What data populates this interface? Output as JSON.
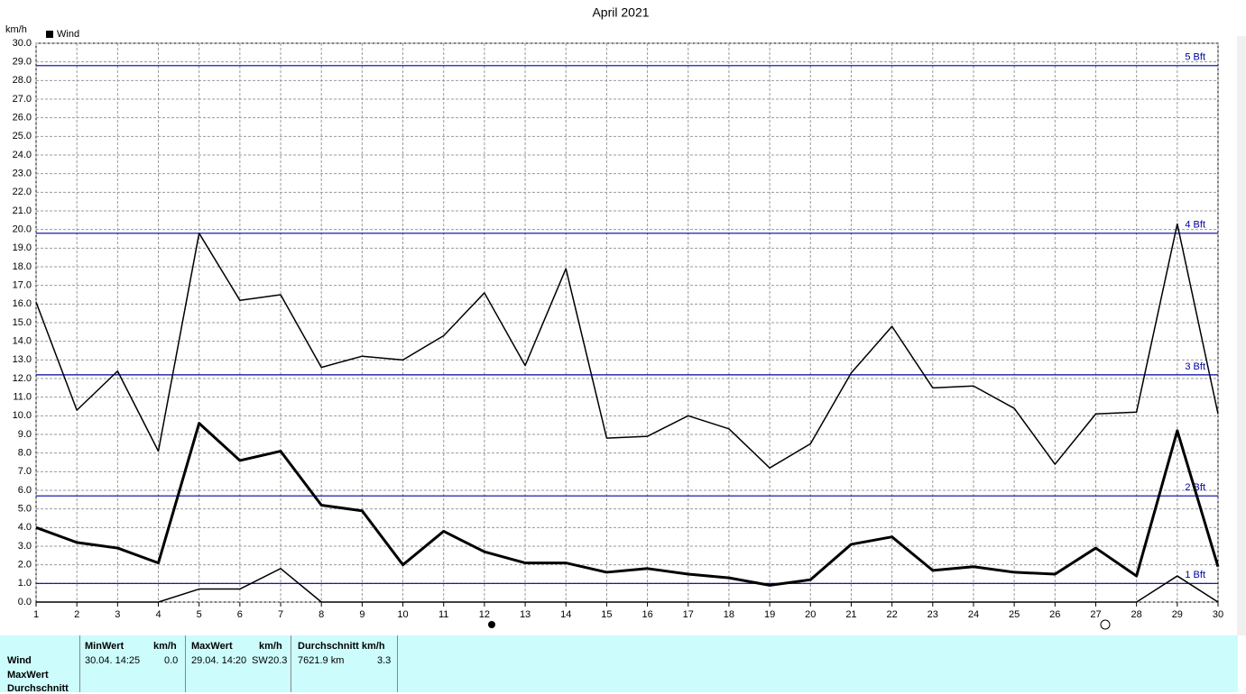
{
  "chart_data": {
    "type": "line",
    "title": "April 2021",
    "y_unit": "km/h",
    "legend_label": "Wind",
    "x": [
      1,
      2,
      3,
      4,
      5,
      6,
      7,
      8,
      9,
      10,
      11,
      12,
      13,
      14,
      15,
      16,
      17,
      18,
      19,
      20,
      21,
      22,
      23,
      24,
      25,
      26,
      27,
      28,
      29,
      30
    ],
    "xlim": [
      1,
      30
    ],
    "xticks": [
      1,
      2,
      3,
      4,
      5,
      6,
      7,
      8,
      9,
      10,
      11,
      12,
      13,
      14,
      15,
      16,
      17,
      18,
      19,
      20,
      21,
      22,
      23,
      24,
      25,
      26,
      27,
      28,
      29,
      30
    ],
    "ylim": [
      0,
      30
    ],
    "grid": true,
    "yticks": [
      {
        "value": 0,
        "label": "0.0"
      },
      {
        "value": 1,
        "label": "1.0"
      },
      {
        "value": 2,
        "label": "2.0"
      },
      {
        "value": 3,
        "label": "3.0"
      },
      {
        "value": 4,
        "label": "4.0"
      },
      {
        "value": 5,
        "label": "5.0"
      },
      {
        "value": 6,
        "label": "6.0"
      },
      {
        "value": 7,
        "label": "7.0"
      },
      {
        "value": 8,
        "label": "8.0"
      },
      {
        "value": 9,
        "label": "9.0"
      },
      {
        "value": 10,
        "label": "10.0"
      },
      {
        "value": 11,
        "label": "11.0"
      },
      {
        "value": 12,
        "label": "12.0"
      },
      {
        "value": 13,
        "label": "13.0"
      },
      {
        "value": 14,
        "label": "14.0"
      },
      {
        "value": 15,
        "label": "15.0"
      },
      {
        "value": 16,
        "label": "16.0"
      },
      {
        "value": 17,
        "label": "17.0"
      },
      {
        "value": 18,
        "label": "18.0"
      },
      {
        "value": 19,
        "label": "19.0"
      },
      {
        "value": 20,
        "label": "20.0"
      },
      {
        "value": 21,
        "label": "21.0"
      },
      {
        "value": 22,
        "label": "22.0"
      },
      {
        "value": 23,
        "label": "23.0"
      },
      {
        "value": 24,
        "label": "24.0"
      },
      {
        "value": 25,
        "label": "25.0"
      },
      {
        "value": 26,
        "label": "26.0"
      },
      {
        "value": 27,
        "label": "27.0"
      },
      {
        "value": 28,
        "label": "28.0"
      },
      {
        "value": 29,
        "label": "29.0"
      },
      {
        "value": 30,
        "label": "30.0"
      }
    ],
    "reference_lines": [
      {
        "value": 1.0,
        "label": "1 Bft"
      },
      {
        "value": 5.7,
        "label": "2 Bft"
      },
      {
        "value": 12.2,
        "label": "3 Bft"
      },
      {
        "value": 19.8,
        "label": "4 Bft"
      },
      {
        "value": 28.8,
        "label": "5 Bft"
      }
    ],
    "reference_color": "#0000a0",
    "series": [
      {
        "color": "#000000",
        "width": 1.5,
        "values": [
          16.1,
          10.3,
          12.4,
          8.1,
          19.8,
          16.2,
          16.5,
          12.6,
          13.2,
          13.0,
          14.3,
          16.6,
          12.7,
          17.9,
          8.8,
          8.9,
          10.0,
          9.3,
          7.2,
          8.5,
          12.3,
          14.8,
          11.5,
          11.6,
          10.4,
          7.4,
          10.1,
          10.2,
          20.3,
          10.1
        ]
      },
      {
        "color": "#000000",
        "width": 3,
        "values": [
          4.0,
          3.2,
          2.9,
          2.1,
          9.6,
          7.6,
          8.1,
          5.2,
          4.9,
          2.0,
          3.8,
          2.7,
          2.1,
          2.1,
          1.6,
          1.8,
          1.5,
          1.3,
          0.9,
          1.2,
          3.1,
          3.5,
          1.7,
          1.9,
          1.6,
          1.5,
          2.9,
          1.4,
          9.2,
          1.9
        ]
      },
      {
        "color": "#000000",
        "width": 1.5,
        "values": [
          0,
          0,
          0,
          0,
          0.7,
          0.7,
          1.8,
          0,
          0,
          0,
          0,
          0,
          0,
          0,
          0,
          0,
          0,
          0,
          0,
          0,
          0,
          0,
          0,
          0,
          0,
          0,
          0,
          0,
          1.4,
          0
        ]
      }
    ]
  },
  "stats": {
    "row_labels": [
      "Wind",
      "MaxWert",
      "Durchschnitt"
    ],
    "min": {
      "header": "MinWert",
      "unit": "km/h",
      "time": "30.04. 14:25",
      "value": "0.0"
    },
    "max": {
      "header": "MaxWert",
      "unit": "km/h",
      "time": "29.04. 14:20",
      "direction": "SW",
      "value": "20.3"
    },
    "avg": {
      "header": "Durchschnitt km/h",
      "distance": "7621.9 km",
      "value": "3.3"
    }
  }
}
